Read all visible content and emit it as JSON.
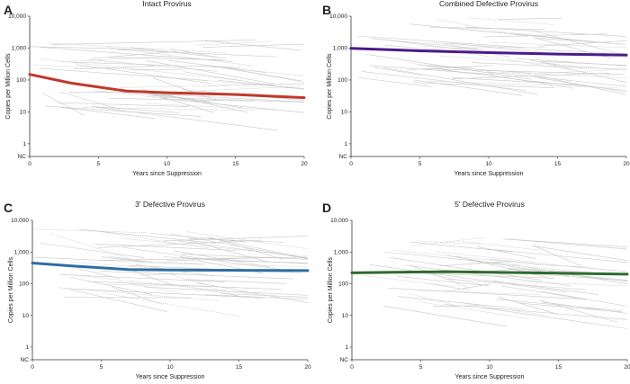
{
  "chart_data": [
    {
      "type": "line",
      "panel": "A",
      "title": "Intact Provirus",
      "xlabel": "Years since Suppression",
      "ylabel": "Copies per Million Cells",
      "yscale": "log",
      "xlim": [
        0,
        20
      ],
      "xticks": [
        "0",
        "5",
        "10",
        "15",
        "20"
      ],
      "yticks": [
        "NC",
        "1",
        "10",
        "100",
        "1,000",
        "10,000"
      ],
      "ylim": [
        0.4,
        10000
      ],
      "individual_color": "#c8c8c8",
      "series": [
        {
          "color": "#c0392b",
          "x": [
            0,
            3,
            7,
            10,
            15,
            20
          ],
          "y": [
            150,
            80,
            45,
            40,
            35,
            28
          ]
        }
      ]
    },
    {
      "type": "line",
      "panel": "B",
      "title": "Combined Defective Provirus",
      "xlabel": "Years since Suppression",
      "ylabel": "Copies per Million Cells",
      "yscale": "log",
      "xlim": [
        0,
        20
      ],
      "xticks": [
        "0",
        "5",
        "10",
        "15",
        "20"
      ],
      "yticks": [
        "NC",
        "1",
        "10",
        "100",
        "1,000",
        "10,000"
      ],
      "ylim": [
        0.4,
        10000
      ],
      "individual_color": "#c8c8c8",
      "series": [
        {
          "color": "#4b1a8c",
          "x": [
            0,
            5,
            10,
            15,
            20
          ],
          "y": [
            980,
            820,
            720,
            650,
            600
          ]
        }
      ]
    },
    {
      "type": "line",
      "panel": "C",
      "title": "3'  Defective Provirus",
      "xlabel": "Years since Suppression",
      "ylabel": "Copies per Million Cells",
      "yscale": "log",
      "xlim": [
        0,
        20
      ],
      "xticks": [
        "0",
        "5",
        "10",
        "15",
        "20"
      ],
      "yticks": [
        "NC",
        "1",
        "10",
        "100",
        "1,000",
        "10,000"
      ],
      "ylim": [
        0.4,
        10000
      ],
      "individual_color": "#c8c8c8",
      "series": [
        {
          "color": "#2e6da4",
          "x": [
            0,
            3,
            7,
            10,
            15,
            20
          ],
          "y": [
            450,
            360,
            280,
            270,
            265,
            260
          ]
        }
      ]
    },
    {
      "type": "line",
      "panel": "D",
      "title": "5' Defective Provirus",
      "xlabel": "Years since Suppression",
      "ylabel": "Copies per Million Cells",
      "yscale": "log",
      "xlim": [
        0,
        20
      ],
      "xticks": [
        "0",
        "5",
        "10",
        "15",
        "20"
      ],
      "yticks": [
        "NC",
        "1",
        "10",
        "100",
        "1,000",
        "10,000"
      ],
      "ylim": [
        0.4,
        10000
      ],
      "individual_color": "#c8c8c8",
      "series": [
        {
          "color": "#2e6b2e",
          "x": [
            0,
            3,
            7,
            10,
            15,
            20
          ],
          "y": [
            220,
            230,
            240,
            230,
            215,
            200
          ]
        }
      ]
    }
  ]
}
